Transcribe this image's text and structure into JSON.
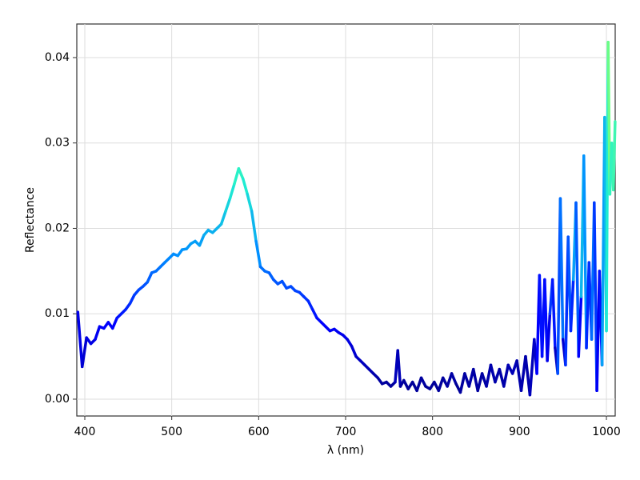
{
  "chart_data": {
    "type": "line",
    "xlabel": "λ (nm)",
    "ylabel": "Reflectance",
    "xlim": [
      390.8,
      1010.1
    ],
    "ylim": [
      -0.00197,
      0.04393
    ],
    "xticks": [
      400,
      500,
      600,
      700,
      800,
      900,
      1000
    ],
    "yticks": [
      {
        "value": 0,
        "label": "0.00"
      },
      {
        "value": 0.01,
        "label": "0.01"
      },
      {
        "value": 0.02,
        "label": "0.02"
      },
      {
        "value": 0.03,
        "label": "0.03"
      },
      {
        "value": 0.04,
        "label": "0.04"
      }
    ],
    "grid": true,
    "colormap": [
      "#00008b",
      "#0000ff",
      "#0090ff",
      "#20f0d0",
      "#70ff80",
      "#ffff00"
    ],
    "x": [
      392,
      397,
      402,
      407,
      412,
      417,
      422,
      427,
      432,
      437,
      442,
      447,
      452,
      457,
      462,
      467,
      472,
      477,
      482,
      487,
      492,
      497,
      502,
      507,
      512,
      517,
      522,
      527,
      532,
      537,
      542,
      547,
      552,
      557,
      562,
      567,
      572,
      577,
      582,
      587,
      592,
      597,
      602,
      607,
      612,
      617,
      622,
      627,
      632,
      637,
      642,
      647,
      652,
      657,
      662,
      667,
      672,
      677,
      682,
      687,
      692,
      697,
      702,
      707,
      712,
      717,
      722,
      727,
      732,
      737,
      742,
      747,
      752,
      757,
      760,
      763,
      767,
      772,
      777,
      782,
      787,
      792,
      797,
      802,
      807,
      812,
      817,
      822,
      827,
      832,
      837,
      842,
      847,
      852,
      857,
      862,
      867,
      872,
      877,
      882,
      887,
      892,
      897,
      902,
      907,
      912,
      917,
      920,
      923,
      926,
      929,
      932,
      935,
      938,
      941,
      944,
      947,
      950,
      953,
      956,
      959,
      962,
      965,
      968,
      971,
      974,
      977,
      980,
      983,
      986,
      989,
      992,
      995,
      998,
      1000,
      1002,
      1004,
      1006,
      1008,
      1010
    ],
    "values": [
      0.0102,
      0.0038,
      0.0072,
      0.0065,
      0.007,
      0.0085,
      0.0083,
      0.009,
      0.0083,
      0.0095,
      0.01,
      0.0105,
      0.0112,
      0.0122,
      0.0128,
      0.0132,
      0.0137,
      0.0148,
      0.015,
      0.0155,
      0.016,
      0.0165,
      0.017,
      0.0168,
      0.0175,
      0.0176,
      0.0182,
      0.0185,
      0.018,
      0.0192,
      0.0198,
      0.0195,
      0.02,
      0.0205,
      0.022,
      0.0235,
      0.0252,
      0.027,
      0.0258,
      0.024,
      0.022,
      0.0185,
      0.0155,
      0.015,
      0.0148,
      0.014,
      0.0135,
      0.0138,
      0.013,
      0.0132,
      0.0127,
      0.0125,
      0.012,
      0.0115,
      0.0105,
      0.0095,
      0.009,
      0.0085,
      0.008,
      0.0082,
      0.0078,
      0.0075,
      0.007,
      0.0062,
      0.005,
      0.0045,
      0.004,
      0.0035,
      0.003,
      0.0025,
      0.0018,
      0.002,
      0.0015,
      0.002,
      0.0057,
      0.0015,
      0.0022,
      0.0012,
      0.002,
      0.001,
      0.0025,
      0.0015,
      0.0012,
      0.002,
      0.001,
      0.0025,
      0.0015,
      0.003,
      0.0018,
      0.0008,
      0.003,
      0.0015,
      0.0035,
      0.001,
      0.003,
      0.0015,
      0.004,
      0.002,
      0.0035,
      0.0015,
      0.004,
      0.003,
      0.0045,
      0.001,
      0.005,
      0.0005,
      0.007,
      0.003,
      0.0145,
      0.005,
      0.014,
      0.0045,
      0.01,
      0.014,
      0.006,
      0.003,
      0.0235,
      0.007,
      0.004,
      0.019,
      0.008,
      0.014,
      0.023,
      0.005,
      0.012,
      0.0285,
      0.006,
      0.016,
      0.007,
      0.023,
      0.001,
      0.015,
      0.004,
      0.033,
      0.008,
      0.0418,
      0.024,
      0.03,
      0.0245,
      0.0325
    ]
  }
}
